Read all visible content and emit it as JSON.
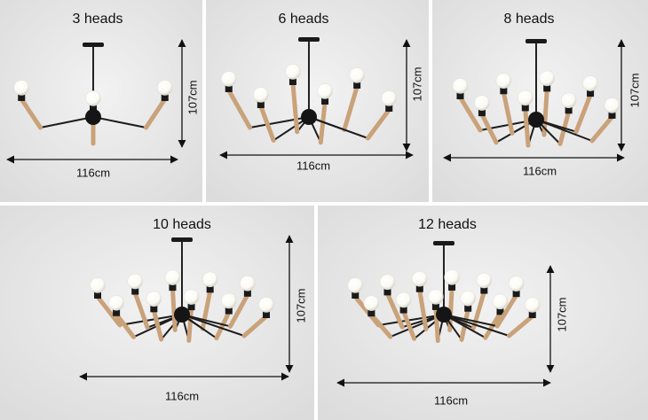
{
  "panels": [
    {
      "title": "3 heads",
      "height": "107cm",
      "width": "116cm"
    },
    {
      "title": "6 heads",
      "height": "107cm",
      "width": "116cm"
    },
    {
      "title": "8 heads",
      "height": "107cm",
      "width": "116cm"
    },
    {
      "title": "10 heads",
      "height": "107cm",
      "width": "116cm"
    },
    {
      "title": "12 heads",
      "height": "107cm",
      "width": "116cm"
    }
  ]
}
